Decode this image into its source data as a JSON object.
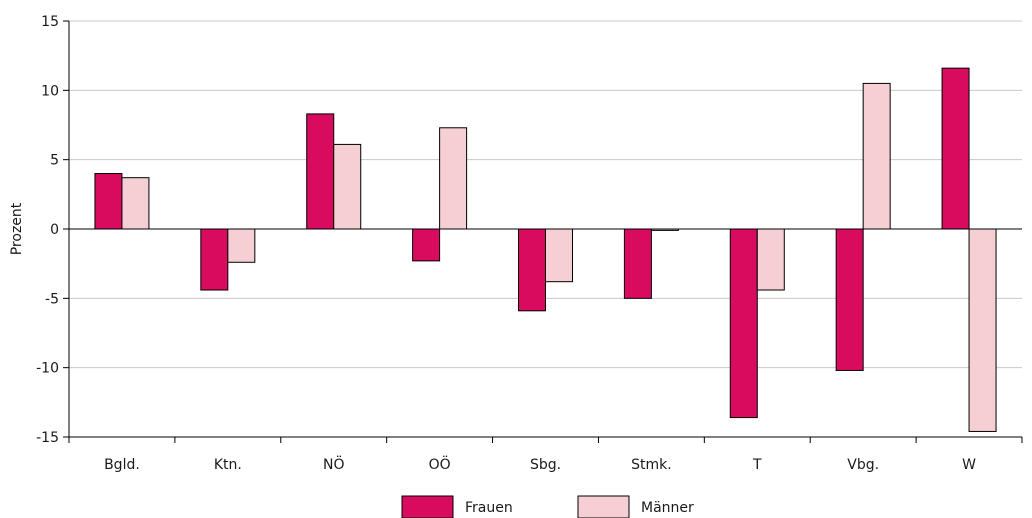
{
  "chart_data": {
    "type": "bar",
    "ylabel": "Prozent",
    "ylim": [
      -15,
      15
    ],
    "yticks": [
      15,
      10,
      5,
      0,
      -5,
      -10,
      -15
    ],
    "grid": true,
    "legend_position": "bottom-center",
    "categories": [
      "Bgld.",
      "Ktn.",
      "NÖ",
      "OÖ",
      "Sbg.",
      "Stmk.",
      "T",
      "Vbg.",
      "W"
    ],
    "series": [
      {
        "name": "Frauen",
        "color": "#d80b5f",
        "values": [
          4.0,
          -4.4,
          8.3,
          -2.3,
          -5.9,
          -5.0,
          -13.6,
          -10.2,
          11.6
        ]
      },
      {
        "name": "Männer",
        "color": "#f6cfd4",
        "values": [
          3.7,
          -2.4,
          6.1,
          7.3,
          -3.8,
          -0.1,
          -4.4,
          10.5,
          -14.6
        ]
      }
    ]
  }
}
